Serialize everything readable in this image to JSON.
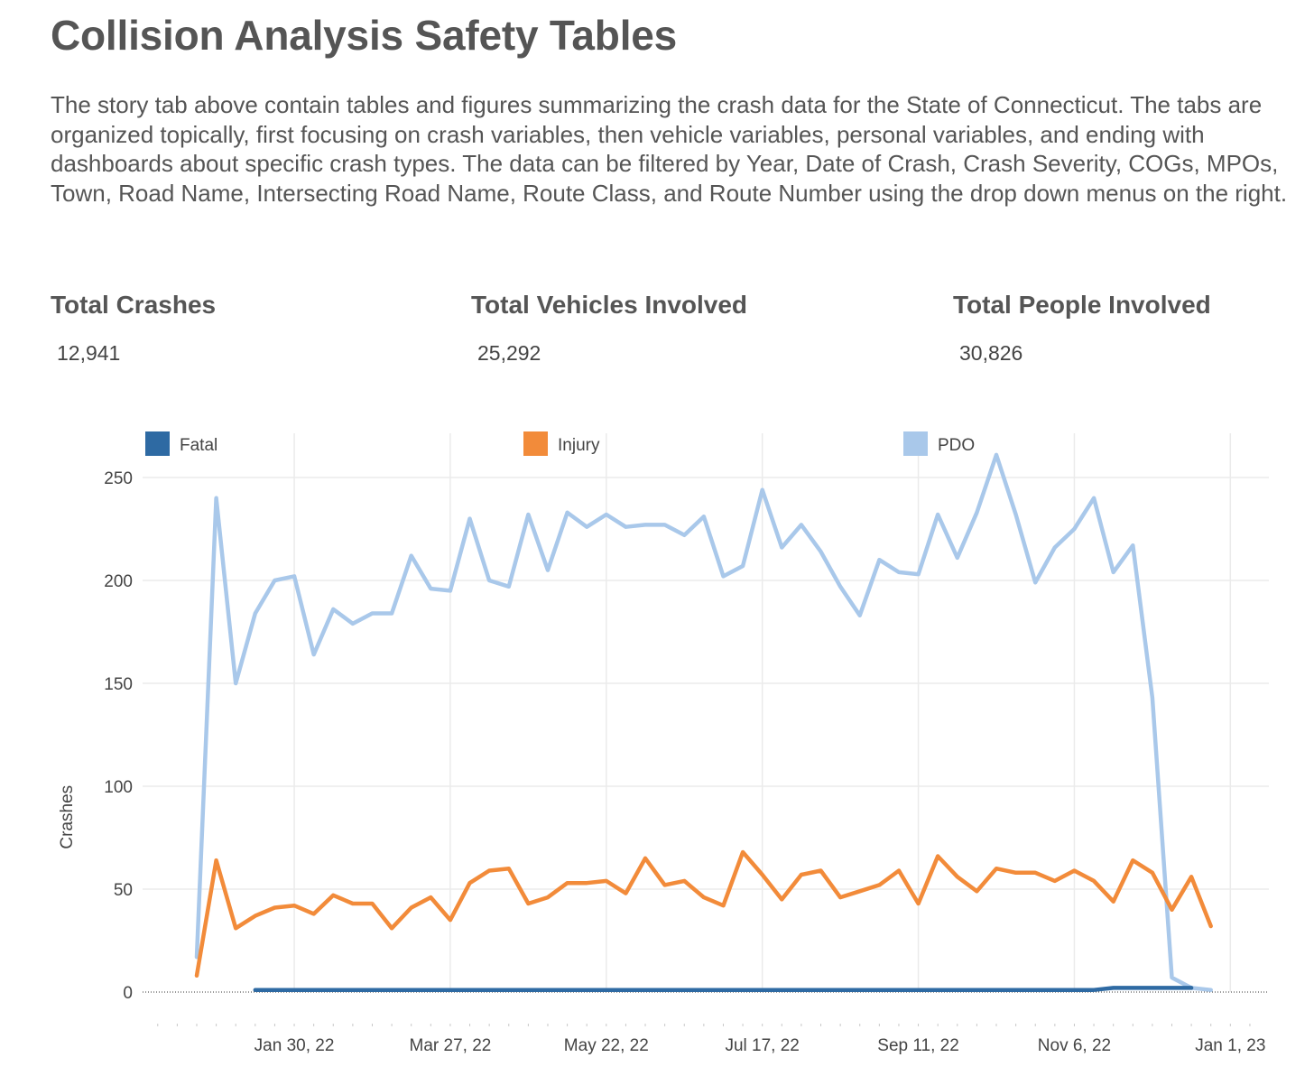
{
  "page": {
    "title": "Collision Analysis Safety Tables",
    "description": "The story tab above contain tables and figures summarizing the crash data for the State of Connecticut. The tabs are organized topically, first focusing on crash variables, then vehicle variables, personal variables, and ending with dashboards about specific crash types. The data can be filtered by Year, Date of Crash, Crash Severity, COGs, MPOs, Town, Road Name, Intersecting Road Name, Route Class, and Route Number using the drop down menus on the right."
  },
  "stats": [
    {
      "label": "Total Crashes",
      "value": "12,941"
    },
    {
      "label": "Total Vehicles Involved",
      "value": "25,292"
    },
    {
      "label": "Total People Involved",
      "value": "30,826"
    }
  ],
  "chart_data": {
    "type": "line",
    "title": "",
    "xlabel": "",
    "ylabel": "Crashes",
    "ylim": [
      0,
      260
    ],
    "yticks": [
      0,
      50,
      100,
      150,
      200,
      250
    ],
    "grid": true,
    "legend_position": "top",
    "x_start_week_index": 0,
    "x_description": "Weekly, starting week of Dec 26, 21",
    "xtick_labels": [
      {
        "label": "Jan 30, 22",
        "week_index": 5
      },
      {
        "label": "Mar 27, 22",
        "week_index": 13
      },
      {
        "label": "May 22, 22",
        "week_index": 21
      },
      {
        "label": "Jul 17, 22",
        "week_index": 29
      },
      {
        "label": "Sep 11, 22",
        "week_index": 37
      },
      {
        "label": "Nov 6, 22",
        "week_index": 45
      },
      {
        "label": "Jan 1, 23",
        "week_index": 53
      }
    ],
    "series": [
      {
        "name": "Fatal",
        "color": "#2e6aa3",
        "start_index": 3,
        "values": [
          1,
          1,
          1,
          1,
          1,
          1,
          1,
          1,
          1,
          1,
          1,
          1,
          1,
          1,
          1,
          1,
          1,
          1,
          1,
          1,
          1,
          1,
          1,
          1,
          1,
          1,
          1,
          1,
          1,
          1,
          1,
          1,
          1,
          1,
          1,
          1,
          1,
          1,
          1,
          1,
          1,
          1,
          1,
          1,
          2,
          2,
          2,
          2,
          2
        ]
      },
      {
        "name": "Injury",
        "color": "#f28b3a",
        "start_index": 0,
        "values": [
          8,
          64,
          31,
          37,
          41,
          42,
          38,
          47,
          43,
          43,
          31,
          41,
          46,
          35,
          53,
          59,
          60,
          43,
          46,
          53,
          53,
          54,
          48,
          65,
          52,
          54,
          46,
          42,
          68,
          57,
          45,
          57,
          59,
          46,
          49,
          52,
          59,
          43,
          66,
          56,
          49,
          60,
          58,
          58,
          54,
          59,
          54,
          44,
          64,
          58,
          40,
          56,
          32
        ]
      },
      {
        "name": "PDO",
        "color": "#a9c8ea",
        "start_index": 0,
        "values": [
          17,
          240,
          150,
          184,
          200,
          202,
          164,
          186,
          179,
          184,
          184,
          212,
          196,
          195,
          230,
          200,
          197,
          232,
          205,
          233,
          226,
          232,
          226,
          227,
          227,
          222,
          231,
          202,
          207,
          244,
          216,
          227,
          214,
          197,
          183,
          210,
          204,
          203,
          232,
          211,
          233,
          261,
          232,
          199,
          216,
          225,
          240,
          204,
          217,
          143,
          7,
          2,
          1
        ]
      }
    ]
  }
}
